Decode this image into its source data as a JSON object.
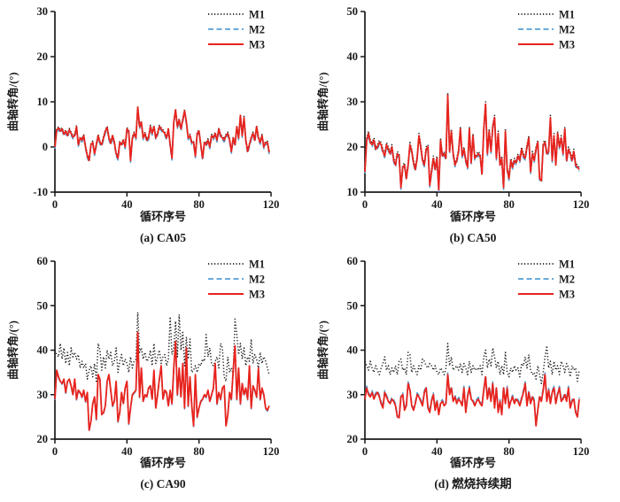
{
  "figure": {
    "background": "#ffffff",
    "axis_color": "#1a1a1a",
    "series_colors": {
      "M1": "#1a1a1a",
      "M2": "#569fd5",
      "M3": "#e8231d"
    }
  },
  "chart_data": [
    {
      "type": "line",
      "caption": "(a) CA05",
      "xlabel": "循环序号",
      "ylabel": "曲轴转角/(°)",
      "xlim": [
        0,
        120
      ],
      "ylim": [
        -10,
        30
      ],
      "xticks": [
        0,
        40,
        80,
        120
      ],
      "yticks": [
        -10,
        0,
        10,
        20,
        30
      ],
      "legend_position": "top-right",
      "series": [
        {
          "name": "M1",
          "line": "dotted",
          "color": "#1a1a1a",
          "base": "M3",
          "offset": 0.3
        },
        {
          "name": "M2",
          "line": "dashed",
          "color": "#569fd5",
          "base": "M3",
          "offset": -0.4
        },
        {
          "name": "M3",
          "line": "solid",
          "color": "#e8231d",
          "values": [
            0.0,
            3.8,
            4.2,
            3.5,
            4.0,
            2.8,
            3.5,
            2.5,
            3.8,
            3.0,
            2.2,
            2.5,
            4.5,
            0.5,
            2.0,
            1.5,
            2.5,
            0.0,
            -2.0,
            -3.0,
            0.5,
            1.0,
            -1.5,
            0.5,
            2.5,
            1.0,
            0.5,
            2.0,
            3.5,
            4.3,
            2.0,
            0.8,
            2.5,
            1.0,
            -1.5,
            -2.5,
            1.0,
            0.5,
            1.5,
            0.0,
            4.0,
            3.5,
            -3.0,
            2.0,
            3.0,
            2.0,
            8.8,
            4.5,
            5.5,
            2.0,
            3.0,
            1.5,
            2.0,
            4.5,
            3.0,
            4.5,
            2.0,
            3.0,
            4.5,
            4.0,
            3.5,
            3.0,
            2.0,
            4.0,
            0.5,
            -2.5,
            5.5,
            8.2,
            4.5,
            6.0,
            4.0,
            6.0,
            8.0,
            5.5,
            2.0,
            2.5,
            1.0,
            1.0,
            -2.0,
            3.0,
            3.5,
            0.5,
            -2.5,
            1.0,
            0.5,
            1.5,
            0.0,
            2.5,
            2.0,
            3.0,
            1.5,
            4.0,
            2.5,
            2.0,
            1.5,
            2.5,
            3.0,
            1.5,
            -1.0,
            2.0,
            0.5,
            4.5,
            2.0,
            7.0,
            2.5,
            6.5,
            1.5,
            -1.0,
            0.5,
            2.0,
            3.0,
            1.5,
            4.5,
            2.0,
            1.0,
            2.5,
            0.0,
            1.0,
            1.0,
            -1.2
          ]
        }
      ]
    },
    {
      "type": "line",
      "caption": "(b) CA50",
      "xlabel": "循环序号",
      "ylabel": "曲轴转角/(°)",
      "xlim": [
        0,
        120
      ],
      "ylim": [
        10,
        50
      ],
      "xticks": [
        0,
        40,
        80,
        120
      ],
      "yticks": [
        10,
        20,
        30,
        40,
        50
      ],
      "legend_position": "top-right",
      "series": [
        {
          "name": "M1",
          "line": "dotted",
          "color": "#1a1a1a",
          "base": "M3",
          "offset": 0.5
        },
        {
          "name": "M2",
          "line": "dashed",
          "color": "#569fd5",
          "base": "M3",
          "offset": -0.4
        },
        {
          "name": "M3",
          "line": "solid",
          "color": "#e8231d",
          "values": [
            14.5,
            21.5,
            23.0,
            21.0,
            20.5,
            21.5,
            19.5,
            20.0,
            21.0,
            20.5,
            19.0,
            18.0,
            20.5,
            19.5,
            18.5,
            20.0,
            17.0,
            16.0,
            18.5,
            18.0,
            11.0,
            15.5,
            16.0,
            13.0,
            16.0,
            20.5,
            19.0,
            16.5,
            15.0,
            17.5,
            22.5,
            20.0,
            17.0,
            16.0,
            19.5,
            20.0,
            11.5,
            14.5,
            17.5,
            15.0,
            17.5,
            10.5,
            21.5,
            18.0,
            18.5,
            17.5,
            31.5,
            19.0,
            23.5,
            18.5,
            16.0,
            17.0,
            19.0,
            24.0,
            18.0,
            19.5,
            17.0,
            15.5,
            24.0,
            16.5,
            22.5,
            17.5,
            18.0,
            18.5,
            18.0,
            14.0,
            24.0,
            29.5,
            18.5,
            23.5,
            19.0,
            24.5,
            26.5,
            17.5,
            23.0,
            16.0,
            17.5,
            11.0,
            23.5,
            15.0,
            13.0,
            17.0,
            15.5,
            17.0,
            16.5,
            18.0,
            17.0,
            19.5,
            18.0,
            17.5,
            20.0,
            22.0,
            14.5,
            18.5,
            17.0,
            19.5,
            21.0,
            13.0,
            12.5,
            20.5,
            21.0,
            18.5,
            19.0,
            26.5,
            17.0,
            22.5,
            16.0,
            23.0,
            20.0,
            22.0,
            18.5,
            24.0,
            17.0,
            19.5,
            18.5,
            17.0,
            19.0,
            16.0,
            15.5,
            15.0
          ]
        }
      ]
    },
    {
      "type": "line",
      "caption": "(c) CA90",
      "xlabel": "循环序号",
      "ylabel": "曲轴转角/(°)",
      "xlim": [
        0,
        120
      ],
      "ylim": [
        20,
        60
      ],
      "xticks": [
        0,
        40,
        80,
        120
      ],
      "yticks": [
        20,
        30,
        40,
        50,
        60
      ],
      "legend_position": "top-right",
      "series": [
        {
          "name": "M1",
          "line": "dotted",
          "color": "#1a1a1a",
          "values": [
            40.0,
            39.0,
            38.5,
            41.5,
            38.0,
            40.5,
            37.0,
            39.5,
            36.5,
            40.5,
            38.5,
            39.5,
            38.0,
            39.0,
            36.0,
            37.5,
            36.0,
            37.0,
            33.5,
            35.5,
            36.5,
            34.0,
            37.0,
            33.0,
            41.5,
            40.0,
            35.5,
            38.5,
            36.0,
            40.0,
            38.0,
            39.5,
            36.5,
            37.5,
            40.5,
            35.0,
            37.5,
            39.0,
            36.5,
            38.0,
            37.0,
            35.0,
            38.5,
            36.0,
            37.5,
            38.0,
            48.5,
            39.5,
            40.5,
            38.0,
            39.5,
            37.5,
            38.0,
            40.0,
            36.5,
            41.5,
            37.0,
            38.5,
            40.0,
            37.0,
            38.5,
            39.0,
            36.5,
            38.0,
            47.5,
            39.0,
            40.5,
            46.5,
            38.5,
            48.0,
            40.0,
            44.0,
            36.5,
            43.0,
            38.0,
            42.5,
            35.0,
            35.5,
            36.5,
            35.0,
            37.0,
            36.5,
            38.0,
            37.5,
            43.5,
            38.5,
            40.5,
            37.0,
            36.5,
            37.5,
            38.5,
            36.0,
            41.5,
            40.5,
            34.0,
            33.0,
            38.5,
            35.0,
            36.0,
            34.5,
            47.0,
            43.5,
            39.0,
            41.5,
            38.0,
            40.5,
            36.5,
            38.5,
            37.5,
            42.5,
            37.0,
            39.0,
            38.0,
            36.0,
            39.5,
            37.0,
            38.5,
            37.5,
            36.0,
            34.5
          ]
        },
        {
          "name": "M2",
          "line": "dashed",
          "color": "#569fd5",
          "base": "M3",
          "offset": -0.2
        },
        {
          "name": "M3",
          "line": "solid",
          "color": "#e8231d",
          "values": [
            29.0,
            35.5,
            34.0,
            33.0,
            32.5,
            33.5,
            30.5,
            33.0,
            33.5,
            32.0,
            30.0,
            33.5,
            29.0,
            31.0,
            30.5,
            29.5,
            31.0,
            28.5,
            30.5,
            22.0,
            24.0,
            28.0,
            29.5,
            24.5,
            34.5,
            33.5,
            25.5,
            26.0,
            27.5,
            33.0,
            34.5,
            31.0,
            27.5,
            28.5,
            33.0,
            24.0,
            26.0,
            30.5,
            28.0,
            31.5,
            33.0,
            23.5,
            27.0,
            30.0,
            30.5,
            31.0,
            44.0,
            29.5,
            36.0,
            28.5,
            30.0,
            29.5,
            31.5,
            32.0,
            29.0,
            35.5,
            27.0,
            30.0,
            33.5,
            36.5,
            29.0,
            31.0,
            30.5,
            27.5,
            31.0,
            28.0,
            36.0,
            42.0,
            30.0,
            36.0,
            29.5,
            37.0,
            27.0,
            40.5,
            27.5,
            34.0,
            27.5,
            23.0,
            34.5,
            25.0,
            27.0,
            28.5,
            29.0,
            30.0,
            29.5,
            31.0,
            28.5,
            30.0,
            31.5,
            37.0,
            28.0,
            30.5,
            29.0,
            31.5,
            32.0,
            23.0,
            25.5,
            30.5,
            29.0,
            35.5,
            41.0,
            29.0,
            36.0,
            28.0,
            32.5,
            30.0,
            31.5,
            29.0,
            36.5,
            27.0,
            32.0,
            31.0,
            29.5,
            36.0,
            29.0,
            31.5,
            30.0,
            27.0,
            26.5,
            27.5
          ]
        }
      ]
    },
    {
      "type": "line",
      "caption": "(d) 燃烧持续期",
      "xlabel": "循环序号",
      "ylabel": "曲轴转角/(°)",
      "xlim": [
        0,
        120
      ],
      "ylim": [
        20,
        60
      ],
      "xticks": [
        0,
        40,
        80,
        120
      ],
      "yticks": [
        20,
        30,
        40,
        50,
        60
      ],
      "legend_position": "top-right",
      "series": [
        {
          "name": "M1",
          "line": "dotted",
          "color": "#1a1a1a",
          "values": [
            37.5,
            36.5,
            35.5,
            37.5,
            36.0,
            35.0,
            36.5,
            35.5,
            34.5,
            36.0,
            37.0,
            38.5,
            35.5,
            36.5,
            34.5,
            36.0,
            35.0,
            36.5,
            34.5,
            37.5,
            38.0,
            35.5,
            36.0,
            34.5,
            39.5,
            39.0,
            35.0,
            36.5,
            35.5,
            34.5,
            36.5,
            35.5,
            38.0,
            37.5,
            36.5,
            36.0,
            37.0,
            36.5,
            35.5,
            36.5,
            35.0,
            34.5,
            36.0,
            35.5,
            34.5,
            36.0,
            41.5,
            36.5,
            38.5,
            35.5,
            36.0,
            36.5,
            35.5,
            37.0,
            35.0,
            37.0,
            36.0,
            34.5,
            37.5,
            35.0,
            36.5,
            35.5,
            36.0,
            35.5,
            36.5,
            34.5,
            38.5,
            40.0,
            36.0,
            38.0,
            36.5,
            40.5,
            38.5,
            36.0,
            37.5,
            34.5,
            36.5,
            34.5,
            39.5,
            35.0,
            34.0,
            36.0,
            35.0,
            36.5,
            35.5,
            36.0,
            34.0,
            37.0,
            36.5,
            38.5,
            36.0,
            39.0,
            35.5,
            34.5,
            35.0,
            33.5,
            36.5,
            34.5,
            32.5,
            35.0,
            38.5,
            41.0,
            36.0,
            37.5,
            34.5,
            37.5,
            35.5,
            36.5,
            34.5,
            37.5,
            36.5,
            35.0,
            37.0,
            36.0,
            34.0,
            36.5,
            35.5,
            36.0,
            33.0,
            35.5
          ]
        },
        {
          "name": "M2",
          "line": "dashed",
          "color": "#569fd5",
          "base": "M3",
          "offset": 0.4
        },
        {
          "name": "M3",
          "line": "solid",
          "color": "#e8231d",
          "values": [
            29.0,
            31.5,
            30.0,
            29.5,
            30.5,
            29.0,
            30.0,
            30.5,
            29.5,
            28.0,
            27.0,
            30.5,
            29.5,
            28.5,
            28.0,
            29.0,
            28.5,
            27.5,
            25.0,
            24.8,
            29.5,
            30.0,
            26.5,
            27.5,
            32.5,
            31.0,
            27.5,
            26.5,
            28.0,
            30.0,
            29.5,
            28.5,
            27.5,
            30.5,
            31.5,
            27.0,
            26.0,
            28.5,
            30.0,
            26.5,
            28.5,
            25.5,
            28.0,
            28.5,
            27.5,
            28.0,
            34.5,
            30.0,
            31.5,
            28.5,
            29.5,
            28.0,
            29.0,
            28.5,
            27.5,
            31.5,
            26.0,
            29.5,
            31.5,
            29.0,
            28.5,
            27.5,
            28.5,
            29.0,
            28.0,
            27.5,
            31.0,
            34.0,
            29.0,
            31.5,
            28.5,
            32.5,
            27.0,
            31.5,
            26.0,
            28.5,
            25.5,
            31.5,
            28.0,
            31.5,
            27.0,
            28.5,
            29.5,
            28.0,
            29.0,
            28.5,
            27.5,
            29.0,
            30.5,
            32.5,
            27.5,
            30.5,
            28.0,
            29.5,
            28.5,
            23.0,
            26.5,
            29.5,
            28.5,
            31.0,
            34.5,
            28.5,
            31.0,
            28.0,
            30.5,
            31.5,
            28.0,
            30.0,
            31.5,
            28.5,
            29.0,
            30.0,
            28.5,
            31.5,
            27.0,
            28.5,
            29.0,
            26.0,
            25.0,
            29.0
          ]
        }
      ]
    }
  ]
}
